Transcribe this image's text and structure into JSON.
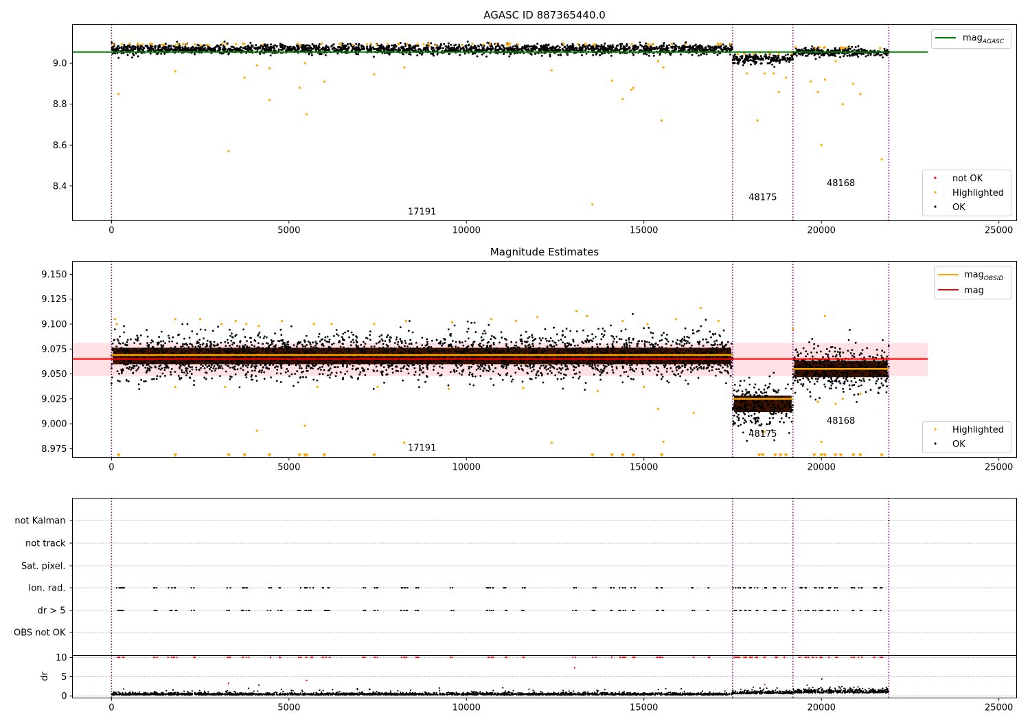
{
  "colors": {
    "ok": "#000000",
    "highlighted": "#ffa500",
    "not_ok": "#ff0000",
    "mag_agasc": "#008000",
    "mag_obsid": "#ffa500",
    "mag": "#ff0000",
    "mag_band": "#ffe0e4",
    "obs_boundary": "#800080",
    "brown_band": "#3a1200"
  },
  "chart_data": [
    {
      "type": "scatter",
      "title": "AGASC ID 887365440.0",
      "xlim": [
        -1100,
        25500
      ],
      "ylim": [
        8.23,
        9.19
      ],
      "xticks": [
        0,
        5000,
        10000,
        15000,
        20000,
        25000
      ],
      "yticks": [
        8.4,
        8.6,
        8.8,
        9.0
      ],
      "ytick_labels": [
        "8.4",
        "8.6",
        "8.8",
        "9.0"
      ],
      "obs_boundaries": [
        0,
        17500,
        19200,
        21900
      ],
      "obs_labels": [
        {
          "text": "17191",
          "x": 8350,
          "y": 8.26
        },
        {
          "text": "48175",
          "x": 17950,
          "y": 8.33
        },
        {
          "text": "48168",
          "x": 20150,
          "y": 8.4
        }
      ],
      "lines": [
        {
          "name": "mag",
          "sub": "AGASC",
          "y": 9.055,
          "x0": -1100,
          "x1": 23000
        }
      ],
      "segments": [
        {
          "x0": 0,
          "x1": 17500,
          "mean": 9.068,
          "spread": 0.012
        },
        {
          "x0": 17500,
          "x1": 19200,
          "mean": 9.022,
          "spread": 0.012
        },
        {
          "x0": 19200,
          "x1": 21900,
          "mean": 9.055,
          "spread": 0.01
        }
      ],
      "highlighted_points": [
        [
          200,
          8.85
        ],
        [
          1800,
          8.96
        ],
        [
          3300,
          8.57
        ],
        [
          3750,
          8.93
        ],
        [
          4100,
          8.99
        ],
        [
          4450,
          8.82
        ],
        [
          4450,
          8.975
        ],
        [
          5300,
          8.88
        ],
        [
          5450,
          9.0
        ],
        [
          5500,
          8.75
        ],
        [
          6000,
          8.91
        ],
        [
          7400,
          8.945
        ],
        [
          8250,
          8.98
        ],
        [
          12400,
          8.965
        ],
        [
          13550,
          8.31
        ],
        [
          14100,
          8.915
        ],
        [
          14400,
          8.825
        ],
        [
          14650,
          8.87
        ],
        [
          14700,
          8.88
        ],
        [
          15400,
          9.01
        ],
        [
          15500,
          8.72
        ],
        [
          15550,
          8.98
        ],
        [
          17900,
          8.95
        ],
        [
          18200,
          8.72
        ],
        [
          18400,
          8.95
        ],
        [
          18650,
          8.95
        ],
        [
          18800,
          8.86
        ],
        [
          19000,
          8.93
        ],
        [
          19700,
          8.91
        ],
        [
          19900,
          8.86
        ],
        [
          20000,
          8.6
        ],
        [
          20100,
          8.92
        ],
        [
          20400,
          9.01
        ],
        [
          20600,
          8.8
        ],
        [
          20900,
          8.9
        ],
        [
          21100,
          8.85
        ],
        [
          21700,
          8.53
        ]
      ],
      "legend": [
        "not OK",
        "Highlighted",
        "OK"
      ]
    },
    {
      "type": "scatter",
      "title": "Magnitude Estimates",
      "xlim": [
        -1100,
        25500
      ],
      "ylim": [
        8.966,
        9.163
      ],
      "xticks": [
        0,
        5000,
        10000,
        15000,
        20000,
        25000
      ],
      "yticks": [
        8.975,
        9.0,
        9.025,
        9.05,
        9.075,
        9.1,
        9.125,
        9.15
      ],
      "ytick_labels": [
        "8.975",
        "9.000",
        "9.025",
        "9.050",
        "9.075",
        "9.100",
        "9.125",
        "9.150"
      ],
      "obs_boundaries": [
        0,
        17500,
        19200,
        21900
      ],
      "obs_labels": [
        {
          "text": "17191",
          "x": 8350,
          "y": 8.973
        },
        {
          "text": "48175",
          "x": 17950,
          "y": 8.987
        },
        {
          "text": "48168",
          "x": 20150,
          "y": 9.0
        },
        {
          "text": "",
          "x": 0,
          "y": 0
        }
      ],
      "mag": 9.065,
      "mag_band": [
        9.048,
        9.081
      ],
      "mag_band_x": [
        -1100,
        23000
      ],
      "mag_obsid": [
        {
          "x0": 0,
          "x1": 17500,
          "y": 9.069
        },
        {
          "x0": 17500,
          "x1": 19200,
          "y": 9.025
        },
        {
          "x0": 19200,
          "x1": 21900,
          "y": 9.055
        }
      ],
      "segments": [
        {
          "x0": 0,
          "x1": 17500,
          "mean": 9.068,
          "spread": 0.011
        },
        {
          "x0": 17500,
          "x1": 19200,
          "mean": 9.02,
          "spread": 0.011
        },
        {
          "x0": 19200,
          "x1": 21900,
          "mean": 9.055,
          "spread": 0.011
        }
      ],
      "highlighted_points": [
        [
          100,
          9.105
        ],
        [
          150,
          9.1
        ],
        [
          1800,
          9.105
        ],
        [
          2500,
          9.105
        ],
        [
          3100,
          9.1
        ],
        [
          3500,
          9.103
        ],
        [
          3800,
          9.1
        ],
        [
          4150,
          9.098
        ],
        [
          4800,
          9.103
        ],
        [
          5700,
          9.1
        ],
        [
          6200,
          9.1
        ],
        [
          7400,
          9.1
        ],
        [
          8300,
          9.103
        ],
        [
          9600,
          9.102
        ],
        [
          10700,
          9.105
        ],
        [
          11400,
          9.103
        ],
        [
          12000,
          9.107
        ],
        [
          13100,
          9.113
        ],
        [
          13400,
          9.108
        ],
        [
          14400,
          9.103
        ],
        [
          15100,
          9.1
        ],
        [
          15900,
          9.105
        ],
        [
          16600,
          9.116
        ],
        [
          17100,
          9.103
        ],
        [
          4100,
          8.993
        ],
        [
          5450,
          8.998
        ],
        [
          8250,
          8.981
        ],
        [
          12400,
          8.981
        ],
        [
          15400,
          9.015
        ],
        [
          15550,
          8.982
        ],
        [
          16400,
          9.011
        ],
        [
          18400,
          8.992
        ],
        [
          19900,
          9.022
        ],
        [
          20000,
          8.982
        ],
        [
          20100,
          9.108
        ],
        [
          20400,
          9.02
        ],
        [
          20600,
          9.025
        ],
        [
          21100,
          9.03
        ],
        [
          1800,
          9.037
        ],
        [
          3200,
          9.037
        ],
        [
          5800,
          9.037
        ],
        [
          7500,
          9.037
        ],
        [
          9500,
          9.035
        ],
        [
          11600,
          9.036
        ],
        [
          13700,
          9.033
        ],
        [
          15000,
          9.037
        ],
        [
          19200,
          9.095
        ]
      ],
      "lower_outliers_x": [
        200,
        1800,
        3300,
        3750,
        4450,
        5300,
        5450,
        5500,
        6000,
        7400,
        13550,
        14100,
        14400,
        14700,
        15500,
        18250,
        18350,
        18700,
        18850,
        19000,
        19800,
        20000,
        20100,
        20400,
        20550,
        20900,
        21100,
        21700
      ],
      "legend": [
        "Highlighted",
        "OK"
      ]
    },
    {
      "type": "scatter",
      "title": "",
      "xlim": [
        -1100,
        25500
      ],
      "xticks": [
        0,
        5000,
        10000,
        15000,
        20000,
        25000
      ],
      "flag_rows": [
        "not Kalman",
        "not track",
        "Sat. pixel.",
        "Ion. rad.",
        "dr > 5",
        "OBS not OK"
      ],
      "flag_x": [
        200,
        250,
        300,
        1250,
        1650,
        1800,
        2300,
        3300,
        3700,
        3850,
        4450,
        4750,
        5300,
        5500,
        5650,
        6000,
        6100,
        7100,
        7450,
        8200,
        8300,
        8600,
        9600,
        10600,
        10700,
        11100,
        11600,
        13050,
        13600,
        14100,
        14350,
        14450,
        14700,
        15400,
        15500,
        16400,
        16800,
        17550,
        17700,
        17850,
        18000,
        18150,
        18400,
        18700,
        18950,
        19400,
        19600,
        19800,
        20000,
        20200,
        20400,
        20900,
        21100,
        21500,
        21700
      ],
      "not_kalman_x": [
        21900
      ],
      "dr_ylabel": "dr",
      "dr_ylim": [
        -0.5,
        10.5
      ],
      "dr_yticks": [
        0,
        5,
        10
      ],
      "dr_baseline": [
        {
          "x0": 0,
          "x1": 17500,
          "mean": 0.3,
          "spread": 0.25
        },
        {
          "x0": 17500,
          "x1": 19200,
          "mean": 0.6,
          "spread": 0.35
        },
        {
          "x0": 19200,
          "x1": 21900,
          "mean": 0.8,
          "spread": 0.5
        }
      ],
      "dr_high_x": [
        200,
        250,
        300,
        1250,
        1650,
        1800,
        2300,
        3300,
        3700,
        3850,
        4450,
        4750,
        5300,
        5500,
        5650,
        6000,
        6100,
        7100,
        7450,
        8200,
        8300,
        8600,
        9600,
        10600,
        10700,
        11100,
        11600,
        13050,
        13600,
        14100,
        14350,
        14450,
        14700,
        15400,
        15500,
        16400,
        16800,
        17550,
        17700,
        17850,
        18000,
        18150,
        18400,
        18700,
        18950,
        19400,
        19600,
        19800,
        20000,
        20200,
        20400,
        20900,
        21100,
        21500,
        21700
      ],
      "dr_mid_points": [
        [
          3300,
          3.3
        ],
        [
          5500,
          4.0
        ],
        [
          13050,
          7.3
        ],
        [
          18400,
          3.0
        ]
      ],
      "obs_boundaries": [
        0,
        17500,
        19200,
        21900
      ]
    }
  ]
}
